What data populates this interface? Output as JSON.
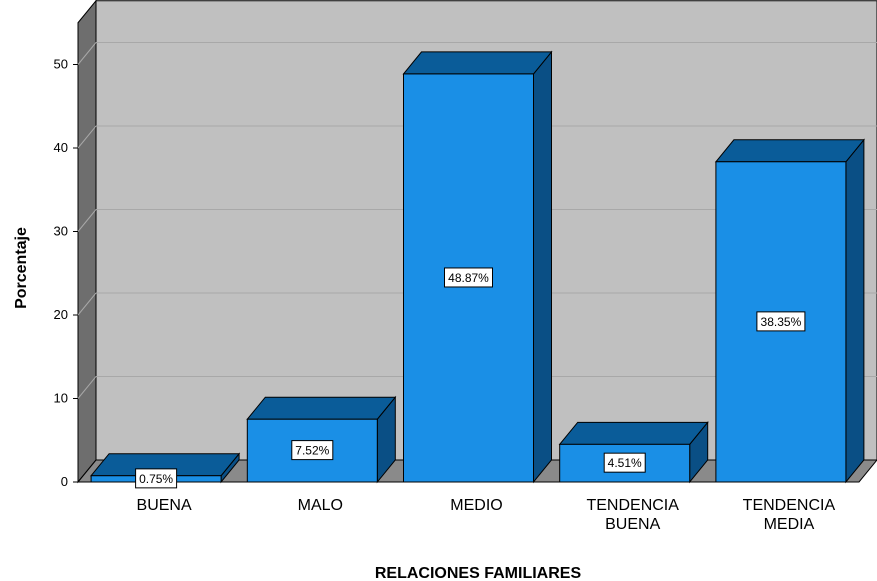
{
  "chart_data": {
    "type": "bar",
    "style": "3d",
    "title": "",
    "xlabel": "RELACIONES FAMILIARES",
    "ylabel": "Porcentaje",
    "categories": [
      [
        "BUENA"
      ],
      [
        "MALO"
      ],
      [
        "MEDIO"
      ],
      [
        "TENDENCIA",
        "BUENA"
      ],
      [
        "TENDENCIA",
        "MEDIA"
      ]
    ],
    "values": [
      0.75,
      7.52,
      48.87,
      4.51,
      38.35
    ],
    "data_labels": [
      "0.75%",
      "7.52%",
      "48.87%",
      "4.51%",
      "38.35%"
    ],
    "ylim": [
      0,
      55
    ],
    "yticks": [
      "0",
      "10",
      "20",
      "30",
      "40",
      "50"
    ],
    "grid": true,
    "colors": {
      "bar_front": "#1a8fe6",
      "bar_top": "#0a5c99",
      "bar_side": "#0a4f85",
      "plot_back": "#c0c0c0",
      "plot_wall": "#6e6e6e",
      "plot_floor": "#8a8a8a",
      "gridline": "#a8a8a8"
    }
  }
}
